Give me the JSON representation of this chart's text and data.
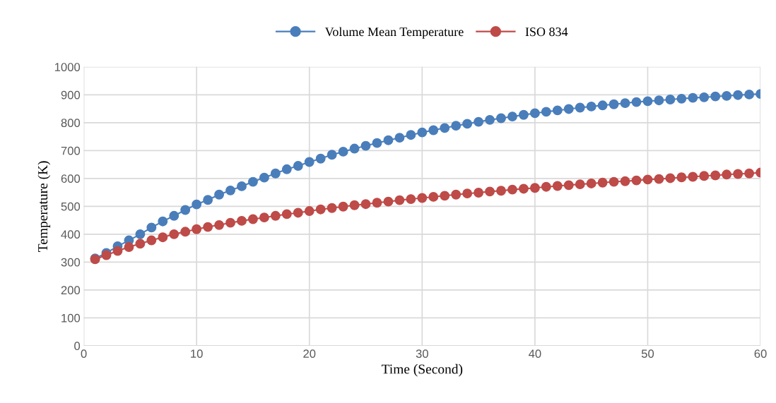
{
  "chart_data": {
    "type": "line",
    "xlabel": "Time (Second)",
    "ylabel": "Temperature (K)",
    "x": [
      1,
      2,
      3,
      4,
      5,
      6,
      7,
      8,
      9,
      10,
      11,
      12,
      13,
      14,
      15,
      16,
      17,
      18,
      19,
      20,
      21,
      22,
      23,
      24,
      25,
      26,
      27,
      28,
      29,
      30,
      31,
      32,
      33,
      34,
      35,
      36,
      37,
      38,
      39,
      40,
      41,
      42,
      43,
      44,
      45,
      46,
      47,
      48,
      49,
      50,
      51,
      52,
      53,
      54,
      55,
      56,
      57,
      58,
      59,
      60
    ],
    "series": [
      {
        "name": "Volume Mean Temperature",
        "color": "#4a7ebb",
        "values": [
          313,
          333,
          357,
          378,
          400,
          424,
          446,
          466,
          487,
          507,
          523,
          542,
          557,
          572,
          588,
          603,
          618,
          633,
          645,
          659,
          671,
          685,
          696,
          707,
          717,
          727,
          737,
          746,
          756,
          765,
          773,
          781,
          789,
          796,
          803,
          810,
          816,
          822,
          828,
          834,
          839,
          844,
          849,
          854,
          858,
          862,
          866,
          870,
          874,
          877,
          880,
          883,
          886,
          889,
          891,
          894,
          896,
          899,
          901,
          903
        ]
      },
      {
        "name": "ISO 834",
        "color": "#be4b48",
        "values": [
          310,
          325,
          340,
          354,
          366,
          378,
          389,
          400,
          409,
          418,
          426,
          433,
          441,
          448,
          454,
          460,
          466,
          472,
          477,
          483,
          489,
          494,
          499,
          504,
          508,
          513,
          517,
          522,
          526,
          530,
          534,
          538,
          542,
          546,
          549,
          553,
          556,
          560,
          563,
          566,
          570,
          573,
          576,
          579,
          582,
          585,
          588,
          590,
          593,
          596,
          598,
          601,
          604,
          606,
          609,
          611,
          614,
          616,
          618,
          621
        ]
      }
    ],
    "xlim": [
      0,
      60
    ],
    "xticks": [
      0,
      10,
      20,
      30,
      40,
      50,
      60
    ],
    "ylim": [
      0,
      1000
    ],
    "yticks": [
      0,
      100,
      200,
      300,
      400,
      500,
      600,
      700,
      800,
      900,
      1000
    ],
    "grid": true,
    "legend": "top",
    "marker": "circle",
    "line_style": "solid"
  }
}
